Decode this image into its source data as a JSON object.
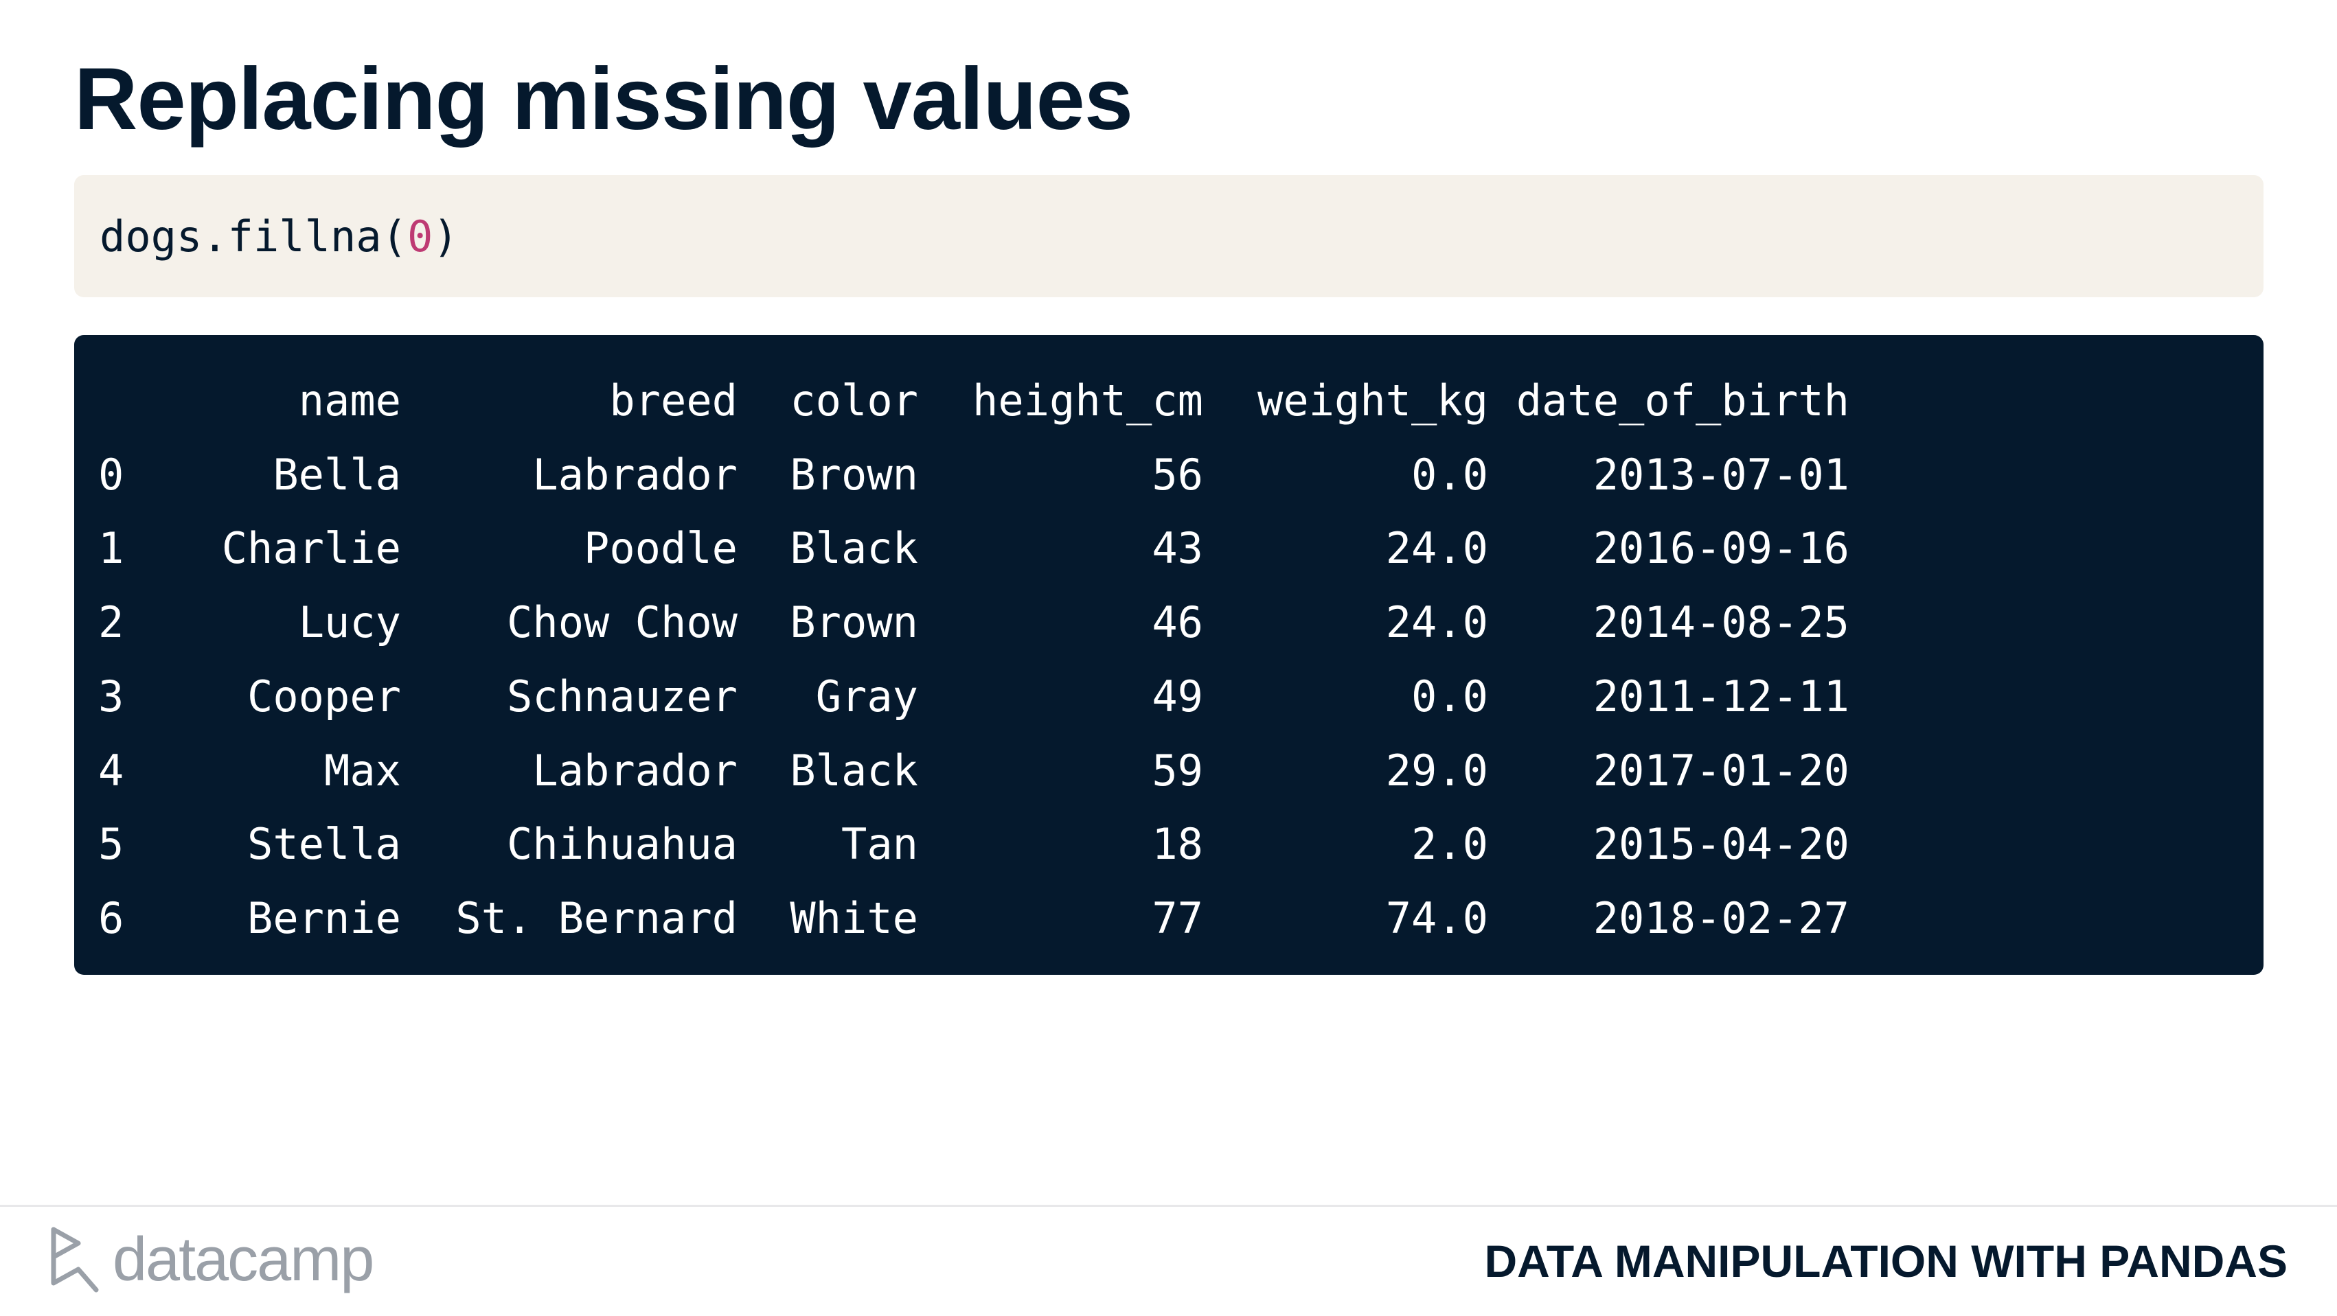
{
  "slide": {
    "title": "Replacing missing values",
    "course_title": "DATA MANIPULATION WITH PANDAS",
    "brand": "datacamp"
  },
  "code": {
    "prefix": "dogs.fillna(",
    "argument": "0",
    "suffix": ")"
  },
  "table": {
    "columns": [
      "name",
      "breed",
      "color",
      "height_cm",
      "weight_kg",
      "date_of_birth"
    ],
    "rows": [
      {
        "index": "0",
        "name": "Bella",
        "breed": "Labrador",
        "color": "Brown",
        "height_cm": "56",
        "weight_kg": "0.0",
        "date_of_birth": "2013-07-01"
      },
      {
        "index": "1",
        "name": "Charlie",
        "breed": "Poodle",
        "color": "Black",
        "height_cm": "43",
        "weight_kg": "24.0",
        "date_of_birth": "2016-09-16"
      },
      {
        "index": "2",
        "name": "Lucy",
        "breed": "Chow Chow",
        "color": "Brown",
        "height_cm": "46",
        "weight_kg": "24.0",
        "date_of_birth": "2014-08-25"
      },
      {
        "index": "3",
        "name": "Cooper",
        "breed": "Schnauzer",
        "color": "Gray",
        "height_cm": "49",
        "weight_kg": "0.0",
        "date_of_birth": "2011-12-11"
      },
      {
        "index": "4",
        "name": "Max",
        "breed": "Labrador",
        "color": "Black",
        "height_cm": "59",
        "weight_kg": "29.0",
        "date_of_birth": "2017-01-20"
      },
      {
        "index": "5",
        "name": "Stella",
        "breed": "Chihuahua",
        "color": "Tan",
        "height_cm": "18",
        "weight_kg": "2.0",
        "date_of_birth": "2015-04-20"
      },
      {
        "index": "6",
        "name": "Bernie",
        "breed": "St. Bernard",
        "color": "White",
        "height_cm": "77",
        "weight_kg": "74.0",
        "date_of_birth": "2018-02-27"
      }
    ]
  },
  "colors": {
    "title": "#05192d",
    "code_background": "#f5f1ea",
    "code_number": "#be3a73",
    "output_background": "#05192d",
    "output_text": "#ffffff",
    "logo": "#9aa0a8"
  },
  "icons": {
    "logo": "datacamp-logo-icon"
  }
}
